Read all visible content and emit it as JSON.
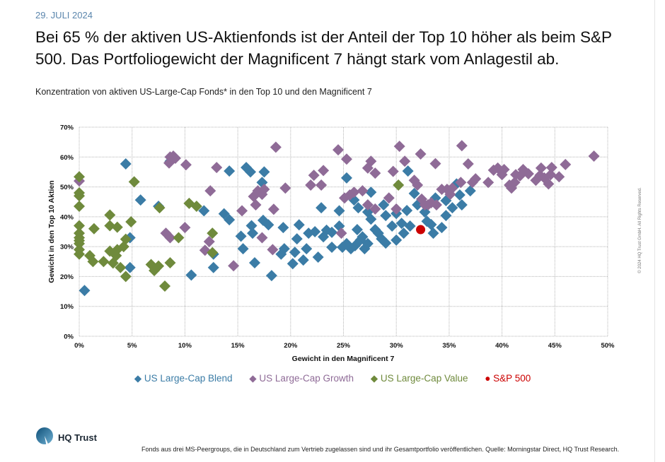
{
  "header": {
    "date": "29. JULI 2024",
    "title": "Bei 65 % der aktiven US-Aktienfonds ist der Anteil der Top 10 höher als beim S&P 500. Das Portfoliogewicht der Magnificent 7 hängt stark vom Anlagestil ab.",
    "subtitle": "Konzentration von aktiven US-Large-Cap Fonds* in den Top 10 und den Magnificent 7"
  },
  "footer": {
    "logo_text": "HQ Trust",
    "footnote": "Fonds aus drei MS-Peergroups, die in Deutschland zum Vertrieb zugelassen sind und ihr Gesamtportfolio veröffentlichen. Quelle: Morningstar Direct, HQ Trust Research.",
    "copyright": "© 2024 HQ Trust GmbH. All Rights Reserved."
  },
  "chart_data": {
    "type": "scatter",
    "title": "Konzentration von aktiven US-Large-Cap Fonds* in den Top 10 und den Magnificent 7",
    "xlabel": "Gewicht in den Magnificent 7",
    "ylabel": "Gewicht in den Top 10 Aktien",
    "xlim": [
      0,
      50
    ],
    "ylim": [
      0,
      70
    ],
    "xticks": [
      "0%",
      "5%",
      "10%",
      "15%",
      "20%",
      "25%",
      "30%",
      "35%",
      "40%",
      "45%",
      "50%"
    ],
    "yticks": [
      "0%",
      "10%",
      "20%",
      "30%",
      "40%",
      "50%",
      "60%",
      "70%"
    ],
    "grid": true,
    "legend_position": "bottom",
    "series": [
      {
        "name": "US Large-Cap Blend",
        "color": "#3b7ca6",
        "marker": "diamond",
        "points": [
          [
            0.5,
            15.3
          ],
          [
            4.4,
            57.7
          ],
          [
            4.8,
            33
          ],
          [
            4.8,
            23
          ],
          [
            5.8,
            45.6
          ],
          [
            7.5,
            43.5
          ],
          [
            8.6,
            58.6
          ],
          [
            10.6,
            20.5
          ],
          [
            11.8,
            42
          ],
          [
            12.7,
            27.5
          ],
          [
            12.7,
            23
          ],
          [
            13.7,
            41
          ],
          [
            14.2,
            55.3
          ],
          [
            14.2,
            39
          ],
          [
            15.3,
            33.5
          ],
          [
            15.5,
            29.3
          ],
          [
            15.8,
            56.5
          ],
          [
            16.2,
            55
          ],
          [
            16.3,
            37
          ],
          [
            16.4,
            34.5
          ],
          [
            16.6,
            24.6
          ],
          [
            17.3,
            51.5
          ],
          [
            17.5,
            55
          ],
          [
            17.4,
            38.8
          ],
          [
            17.9,
            37.3
          ],
          [
            18.2,
            20.3
          ],
          [
            19.1,
            27.5
          ],
          [
            19.3,
            36.4
          ],
          [
            19.4,
            29.3
          ],
          [
            20.2,
            24.3
          ],
          [
            20.4,
            28.1
          ],
          [
            20.6,
            32.6
          ],
          [
            20.8,
            37.3
          ],
          [
            21.2,
            25.5
          ],
          [
            21.5,
            29.3
          ],
          [
            21.7,
            34.5
          ],
          [
            22.3,
            35
          ],
          [
            22.6,
            26.5
          ],
          [
            22.9,
            43
          ],
          [
            23.1,
            33.3
          ],
          [
            23.4,
            35.5
          ],
          [
            23.9,
            34.8
          ],
          [
            24.6,
            42
          ],
          [
            24.9,
            29.8
          ],
          [
            25.3,
            53
          ],
          [
            25.3,
            31
          ],
          [
            25.7,
            29.3
          ],
          [
            26.1,
            30.3
          ],
          [
            26.6,
            32.2
          ],
          [
            27,
            29.3
          ],
          [
            27.3,
            31
          ],
          [
            26.3,
            35.7
          ],
          [
            26.8,
            33.3
          ],
          [
            26,
            45.6
          ],
          [
            26.4,
            43
          ],
          [
            27.3,
            41.6
          ],
          [
            27.6,
            39.2
          ],
          [
            28,
            35.7
          ],
          [
            28.3,
            34.5
          ],
          [
            28.6,
            32.6
          ],
          [
            29,
            31.2
          ],
          [
            27.6,
            48.2
          ],
          [
            28.8,
            44
          ],
          [
            30,
            41.1
          ],
          [
            30.5,
            37.8
          ],
          [
            31,
            42.1
          ],
          [
            31.1,
            55.3
          ],
          [
            31.7,
            47.8
          ],
          [
            32,
            44
          ],
          [
            32.7,
            41.6
          ],
          [
            32.9,
            38.5
          ],
          [
            33.3,
            37.4
          ],
          [
            33.5,
            34.5
          ],
          [
            34.3,
            36.4
          ],
          [
            33.7,
            46.3
          ],
          [
            34.7,
            40.4
          ],
          [
            35.3,
            43
          ],
          [
            35.7,
            51
          ],
          [
            34.7,
            45.4
          ],
          [
            36,
            47.3
          ],
          [
            36.2,
            44
          ],
          [
            37,
            48.7
          ],
          [
            30.7,
            34.5
          ],
          [
            31.3,
            36.9
          ],
          [
            24.6,
            36.9
          ],
          [
            23.9,
            29.8
          ],
          [
            29,
            40.4
          ],
          [
            29.6,
            36.9
          ],
          [
            30,
            32.2
          ]
        ]
      },
      {
        "name": "US Large-Cap Growth",
        "color": "#8f6b97",
        "marker": "diamond",
        "points": [
          [
            0,
            52
          ],
          [
            8.6,
            60
          ],
          [
            8.9,
            60.3
          ],
          [
            9.1,
            59.6
          ],
          [
            8.5,
            58
          ],
          [
            10.1,
            57.4
          ],
          [
            8.2,
            34.5
          ],
          [
            8.6,
            33
          ],
          [
            10,
            36.4
          ],
          [
            12.4,
            48.7
          ],
          [
            12.3,
            31.7
          ],
          [
            11.9,
            28.8
          ],
          [
            13,
            56.5
          ],
          [
            14.6,
            23.6
          ],
          [
            15.4,
            42
          ],
          [
            16.5,
            46.8
          ],
          [
            16.9,
            48.7
          ],
          [
            17.3,
            47.5
          ],
          [
            17.5,
            49.2
          ],
          [
            16.7,
            44
          ],
          [
            17.3,
            33
          ],
          [
            18.6,
            63.3
          ],
          [
            18.4,
            42.5
          ],
          [
            18.3,
            29
          ],
          [
            19.5,
            49.6
          ],
          [
            22.2,
            53.9
          ],
          [
            21.9,
            50.6
          ],
          [
            23.1,
            55.5
          ],
          [
            22.9,
            50.6
          ],
          [
            24.5,
            62.4
          ],
          [
            25.3,
            59.3
          ],
          [
            24.8,
            34.5
          ],
          [
            25.6,
            47.3
          ],
          [
            26,
            48.2
          ],
          [
            26.8,
            48.7
          ],
          [
            25.1,
            46.3
          ],
          [
            27.3,
            44
          ],
          [
            28,
            42.6
          ],
          [
            27.6,
            58.6
          ],
          [
            27.3,
            56.3
          ],
          [
            28,
            54.6
          ],
          [
            29.3,
            46.3
          ],
          [
            29.7,
            55.2
          ],
          [
            30.3,
            63.6
          ],
          [
            30,
            42.6
          ],
          [
            30.8,
            58.6
          ],
          [
            31.7,
            52.2
          ],
          [
            32,
            50.6
          ],
          [
            32.3,
            61
          ],
          [
            32.7,
            44
          ],
          [
            33,
            44
          ],
          [
            32.4,
            45.9
          ],
          [
            33.3,
            44.7
          ],
          [
            33.7,
            57.8
          ],
          [
            33.8,
            44
          ],
          [
            34.3,
            49.2
          ],
          [
            34.8,
            49.2
          ],
          [
            35.1,
            47.5
          ],
          [
            35.3,
            49.6
          ],
          [
            36.1,
            51.5
          ],
          [
            36.2,
            63.8
          ],
          [
            36.8,
            57.7
          ],
          [
            37.2,
            51.5
          ],
          [
            37.5,
            52.7
          ],
          [
            38.7,
            51.5
          ],
          [
            39.2,
            55.6
          ],
          [
            39.6,
            56.3
          ],
          [
            40,
            54.1
          ],
          [
            40.2,
            55.8
          ],
          [
            40.7,
            50.6
          ],
          [
            40.9,
            49.6
          ],
          [
            41.2,
            51.5
          ],
          [
            41.3,
            54.1
          ],
          [
            41.7,
            53.7
          ],
          [
            42.5,
            54.4
          ],
          [
            43.2,
            52.2
          ],
          [
            43.6,
            53.9
          ],
          [
            44,
            53
          ],
          [
            44.4,
            51
          ],
          [
            44.6,
            54.1
          ],
          [
            44.7,
            56.5
          ],
          [
            45.4,
            53.4
          ],
          [
            46,
            57.5
          ],
          [
            48.7,
            60.3
          ],
          [
            42,
            55.8
          ],
          [
            43.7,
            56.3
          ]
        ]
      },
      {
        "name": "US Large-Cap Value",
        "color": "#6f8a3c",
        "marker": "diamond",
        "points": [
          [
            0,
            53.4
          ],
          [
            0,
            48
          ],
          [
            0,
            47
          ],
          [
            0,
            43.5
          ],
          [
            0,
            37
          ],
          [
            0,
            34.5
          ],
          [
            0,
            33
          ],
          [
            0,
            31
          ],
          [
            0,
            29
          ],
          [
            0,
            27.5
          ],
          [
            0,
            32
          ],
          [
            1,
            27
          ],
          [
            1.4,
            36
          ],
          [
            1.3,
            25
          ],
          [
            2.3,
            25
          ],
          [
            2.9,
            40.6
          ],
          [
            2.9,
            37
          ],
          [
            2.9,
            28.5
          ],
          [
            3.2,
            24.5
          ],
          [
            3.6,
            36.5
          ],
          [
            3.6,
            29
          ],
          [
            4.2,
            30
          ],
          [
            4.4,
            32.5
          ],
          [
            4.4,
            20
          ],
          [
            4.9,
            38.3
          ],
          [
            5.2,
            51.7
          ],
          [
            3.9,
            23
          ],
          [
            3.5,
            27
          ],
          [
            6.8,
            24
          ],
          [
            7.1,
            22
          ],
          [
            7.5,
            23.5
          ],
          [
            7.6,
            43
          ],
          [
            8.1,
            16.8
          ],
          [
            8.6,
            24.6
          ],
          [
            9.4,
            33
          ],
          [
            10.4,
            44.5
          ],
          [
            11.1,
            43.5
          ],
          [
            12.6,
            34.5
          ],
          [
            12.6,
            28
          ],
          [
            30.2,
            50.6
          ]
        ]
      },
      {
        "name": "S&P 500",
        "color": "#cc0000",
        "marker": "circle",
        "points": [
          [
            32.3,
            35.7
          ]
        ]
      }
    ]
  }
}
